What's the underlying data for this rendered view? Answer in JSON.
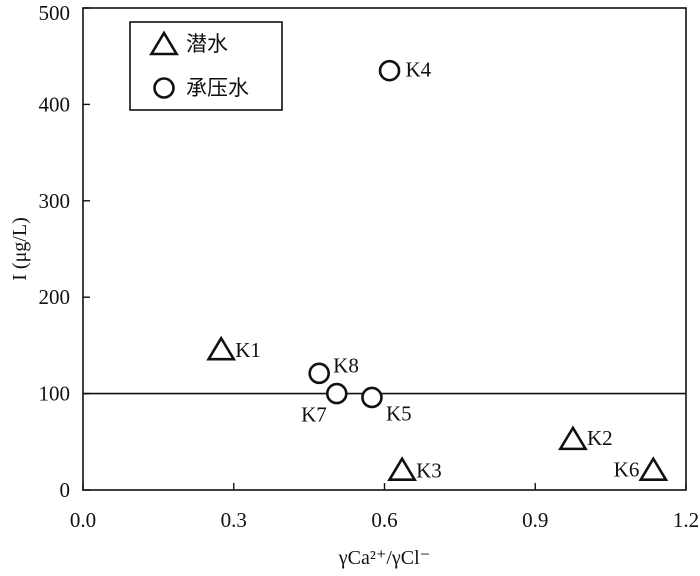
{
  "chart_data": {
    "type": "scatter",
    "title": "",
    "xlabel": "γCa²⁺/γCl⁻",
    "ylabel": "I (μg/L)",
    "xlim": [
      0,
      1.2
    ],
    "ylim": [
      0,
      500
    ],
    "xticks": [
      "0.0",
      "0.3",
      "0.6",
      "0.9",
      "1.2"
    ],
    "yticks": [
      "0",
      "100",
      "200",
      "300",
      "400",
      "500"
    ],
    "grid": false,
    "legend_position": "top-left",
    "reference_line": {
      "y": 100
    },
    "series": [
      {
        "name": "潜水",
        "marker": "triangle",
        "points": [
          {
            "label": "K1",
            "x": 0.275,
            "y": 145
          },
          {
            "label": "K2",
            "x": 0.975,
            "y": 52
          },
          {
            "label": "K3",
            "x": 0.635,
            "y": 20
          },
          {
            "label": "K6",
            "x": 1.135,
            "y": 20
          }
        ]
      },
      {
        "name": "承压水",
        "marker": "circle",
        "points": [
          {
            "label": "K4",
            "x": 0.61,
            "y": 435
          },
          {
            "label": "K8",
            "x": 0.47,
            "y": 121
          },
          {
            "label": "K7",
            "x": 0.505,
            "y": 100
          },
          {
            "label": "K5",
            "x": 0.575,
            "y": 96
          }
        ]
      }
    ]
  }
}
